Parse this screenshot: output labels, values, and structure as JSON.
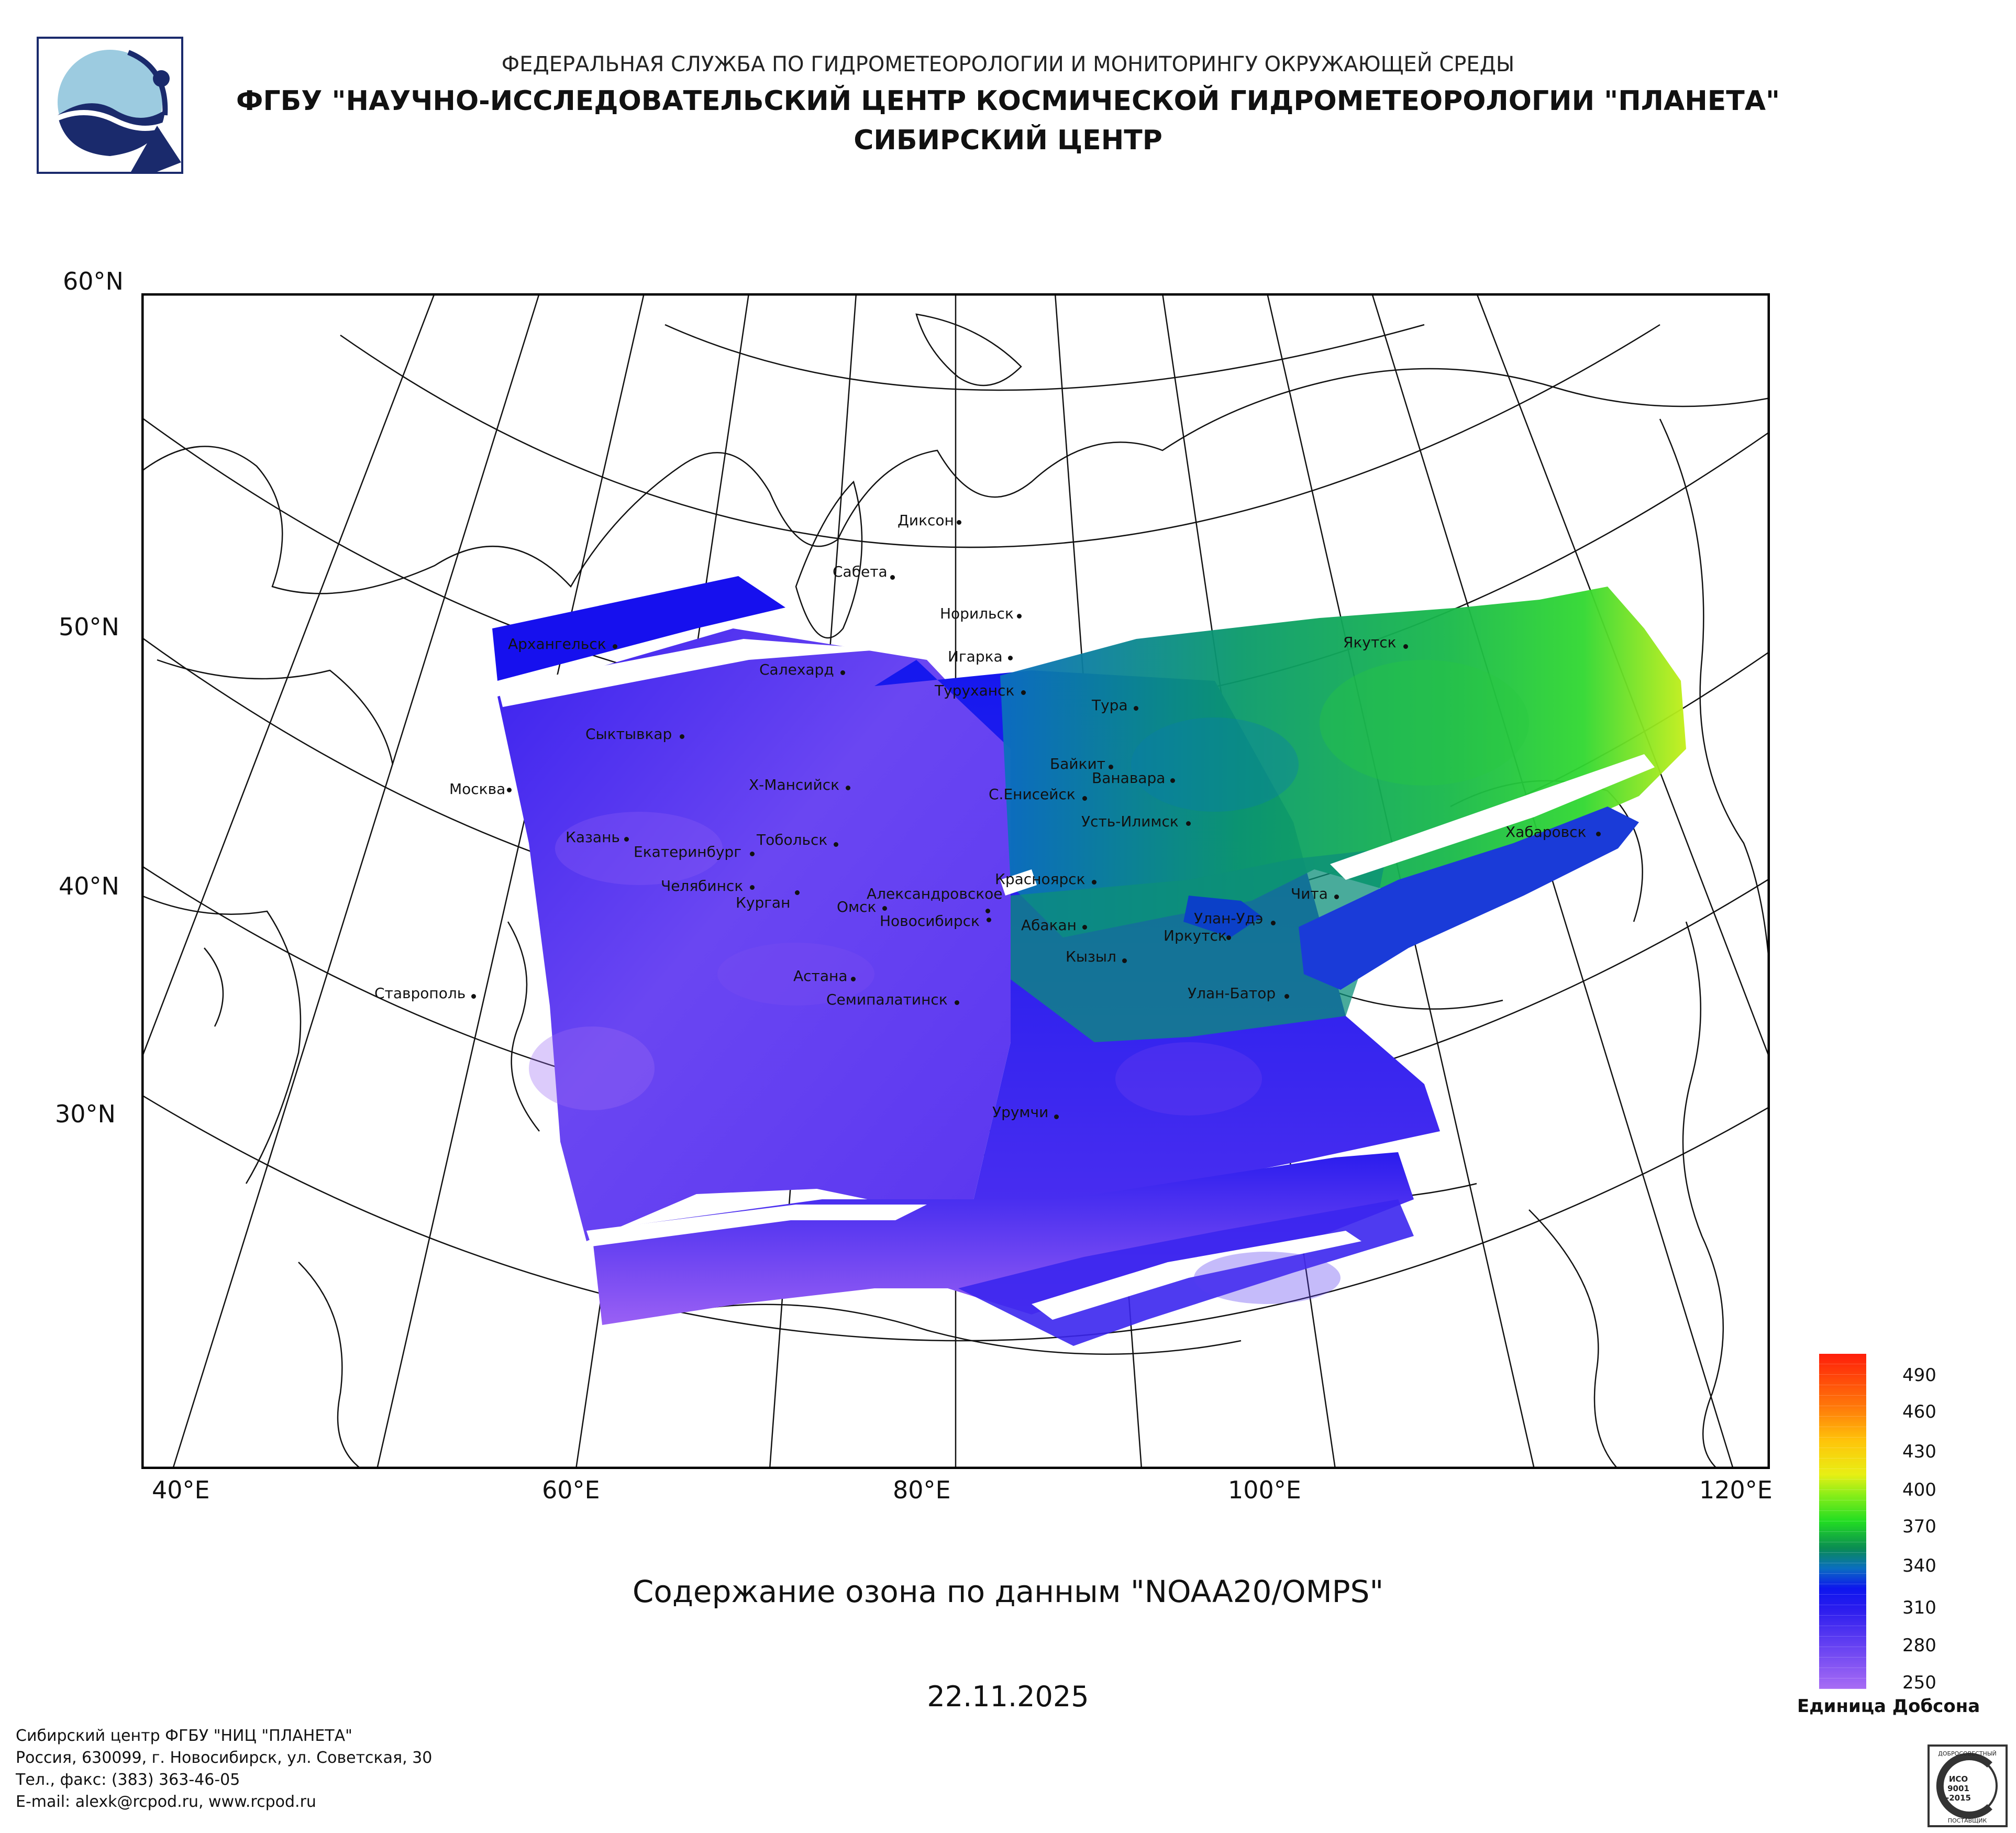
{
  "header": {
    "line1": "ФЕДЕРАЛЬНАЯ СЛУЖБА ПО ГИДРОМЕТЕОРОЛОГИИ И МОНИТОРИНГУ ОКРУЖАЮЩЕЙ СРЕДЫ",
    "line2": "ФГБУ \"НАУЧНО-ИССЛЕДОВАТЕЛЬСКИЙ ЦЕНТР КОСМИЧЕСКОЙ ГИДРОМЕТЕОРОЛОГИИ \"ПЛАНЕТА\"",
    "line3": "СИБИРСКИЙ ЦЕНТР"
  },
  "map": {
    "lat_labels": [
      "60°N",
      "50°N",
      "40°N",
      "30°N"
    ],
    "lon_labels": [
      "40°E",
      "60°E",
      "80°E",
      "100°E",
      "120°E"
    ],
    "cities": [
      "Диксон",
      "Сабета",
      "Норильск",
      "Архангельск",
      "Салехард",
      "Игарка",
      "Якутск",
      "Туруханск",
      "Тура",
      "Сыктывкар",
      "Байкит",
      "Ванавара",
      "Москва",
      "Х-Мансийск",
      "С.Енисейск",
      "Усть-Илимск",
      "Хабаровск",
      "Казань",
      "Екатеринбург",
      "Тобольск",
      "Челябинск",
      "Красноярск",
      "Курган",
      "Александровское",
      "Омск",
      "Новосибирск",
      "Чита",
      "Абакан",
      "Улан-Удэ",
      "Иркутск",
      "Кызыл",
      "Астана",
      "Семипалатинск",
      "Улан-Батор",
      "Ставрополь",
      "Урумчи"
    ]
  },
  "chart_title": "Содержание озона по данным \"NOAA20/OMPS\"",
  "date": "22.11.2025",
  "legend": {
    "ticks": [
      "490",
      "460",
      "430",
      "400",
      "370",
      "340",
      "310",
      "280",
      "250"
    ],
    "unit": "Единица Добсона",
    "range": [
      250,
      500
    ],
    "colors": [
      "#a86cf4",
      "#4f2cf0",
      "#0d16ee",
      "#0a8c52",
      "#22dd22",
      "#e8ef14",
      "#ff9a0a",
      "#ff1e0a"
    ]
  },
  "footer": {
    "org": "Сибирский центр ФГБУ \"НИЦ \"ПЛАНЕТА\"",
    "address": "Россия, 630099, г. Новосибирск, ул. Советская, 30",
    "phone": "Тел., факс: (383) 363-46-05",
    "email": "E-mail: alexk@rcpod.ru, www.rcpod.ru",
    "iso_badge": [
      "ДОБРОСОВЕСТНЫЙ",
      "ИСО",
      "9001",
      "-2015",
      "ПОСТАВЩИК"
    ]
  }
}
